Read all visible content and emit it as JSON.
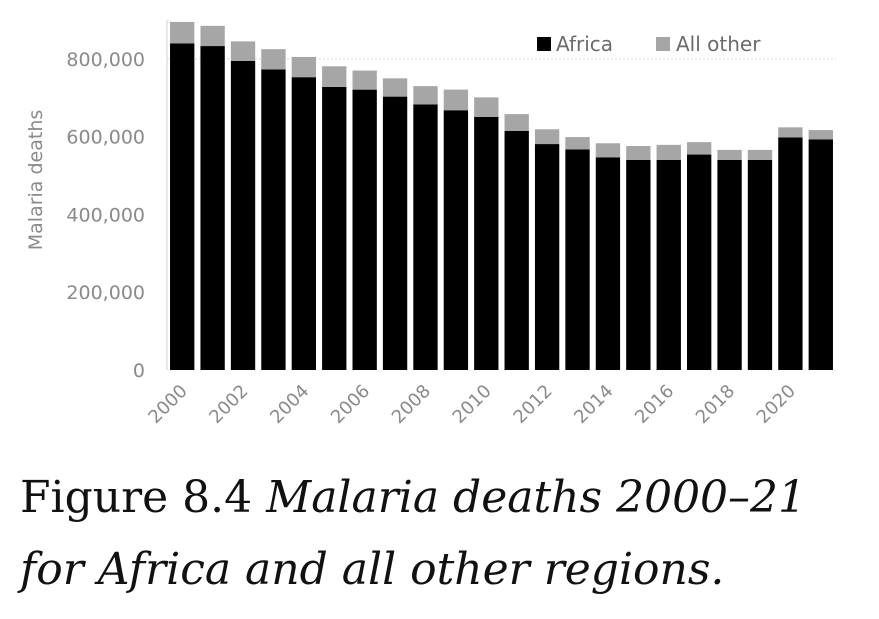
{
  "caption": {
    "label": "Figure 8.4",
    "text": "Malaria deaths 2000–21 for Africa and all other regions."
  },
  "colors": {
    "africa": "#000000",
    "other": "#a6a6a6",
    "axis": "#8a8a8a",
    "grid": "#d9d9d9"
  },
  "chart_data": {
    "type": "bar",
    "stacked": true,
    "title": "",
    "xlabel": "",
    "ylabel": "Malaria deaths",
    "ylim": [
      0,
      900000
    ],
    "yticks": [
      0,
      200000,
      400000,
      600000,
      800000
    ],
    "ytick_labels": [
      "0",
      "200,000",
      "400,000",
      "600,000",
      "800,000"
    ],
    "grid": "horizontal gridline at 800,000",
    "legend_position": "top-right",
    "categories": [
      "2000",
      "2001",
      "2002",
      "2003",
      "2004",
      "2005",
      "2006",
      "2007",
      "2008",
      "2009",
      "2010",
      "2011",
      "2012",
      "2013",
      "2014",
      "2015",
      "2016",
      "2017",
      "2018",
      "2019",
      "2020",
      "2021"
    ],
    "x_tick_labels": [
      "2000",
      "2002",
      "2004",
      "2006",
      "2008",
      "2010",
      "2012",
      "2014",
      "2016",
      "2018",
      "2020"
    ],
    "series": [
      {
        "name": "Africa",
        "color": "#000000",
        "values": [
          840000,
          833000,
          795000,
          773000,
          753000,
          728000,
          721000,
          703000,
          683000,
          668000,
          651000,
          615000,
          581000,
          567000,
          547000,
          540000,
          540000,
          554000,
          540000,
          540000,
          598000,
          593000
        ]
      },
      {
        "name": "All other",
        "color": "#a6a6a6",
        "values": [
          55000,
          52000,
          50000,
          52000,
          52000,
          53000,
          49000,
          47000,
          47000,
          53000,
          50000,
          43000,
          38000,
          32000,
          36000,
          36000,
          39000,
          32000,
          26000,
          26000,
          26000,
          24000
        ]
      }
    ]
  }
}
